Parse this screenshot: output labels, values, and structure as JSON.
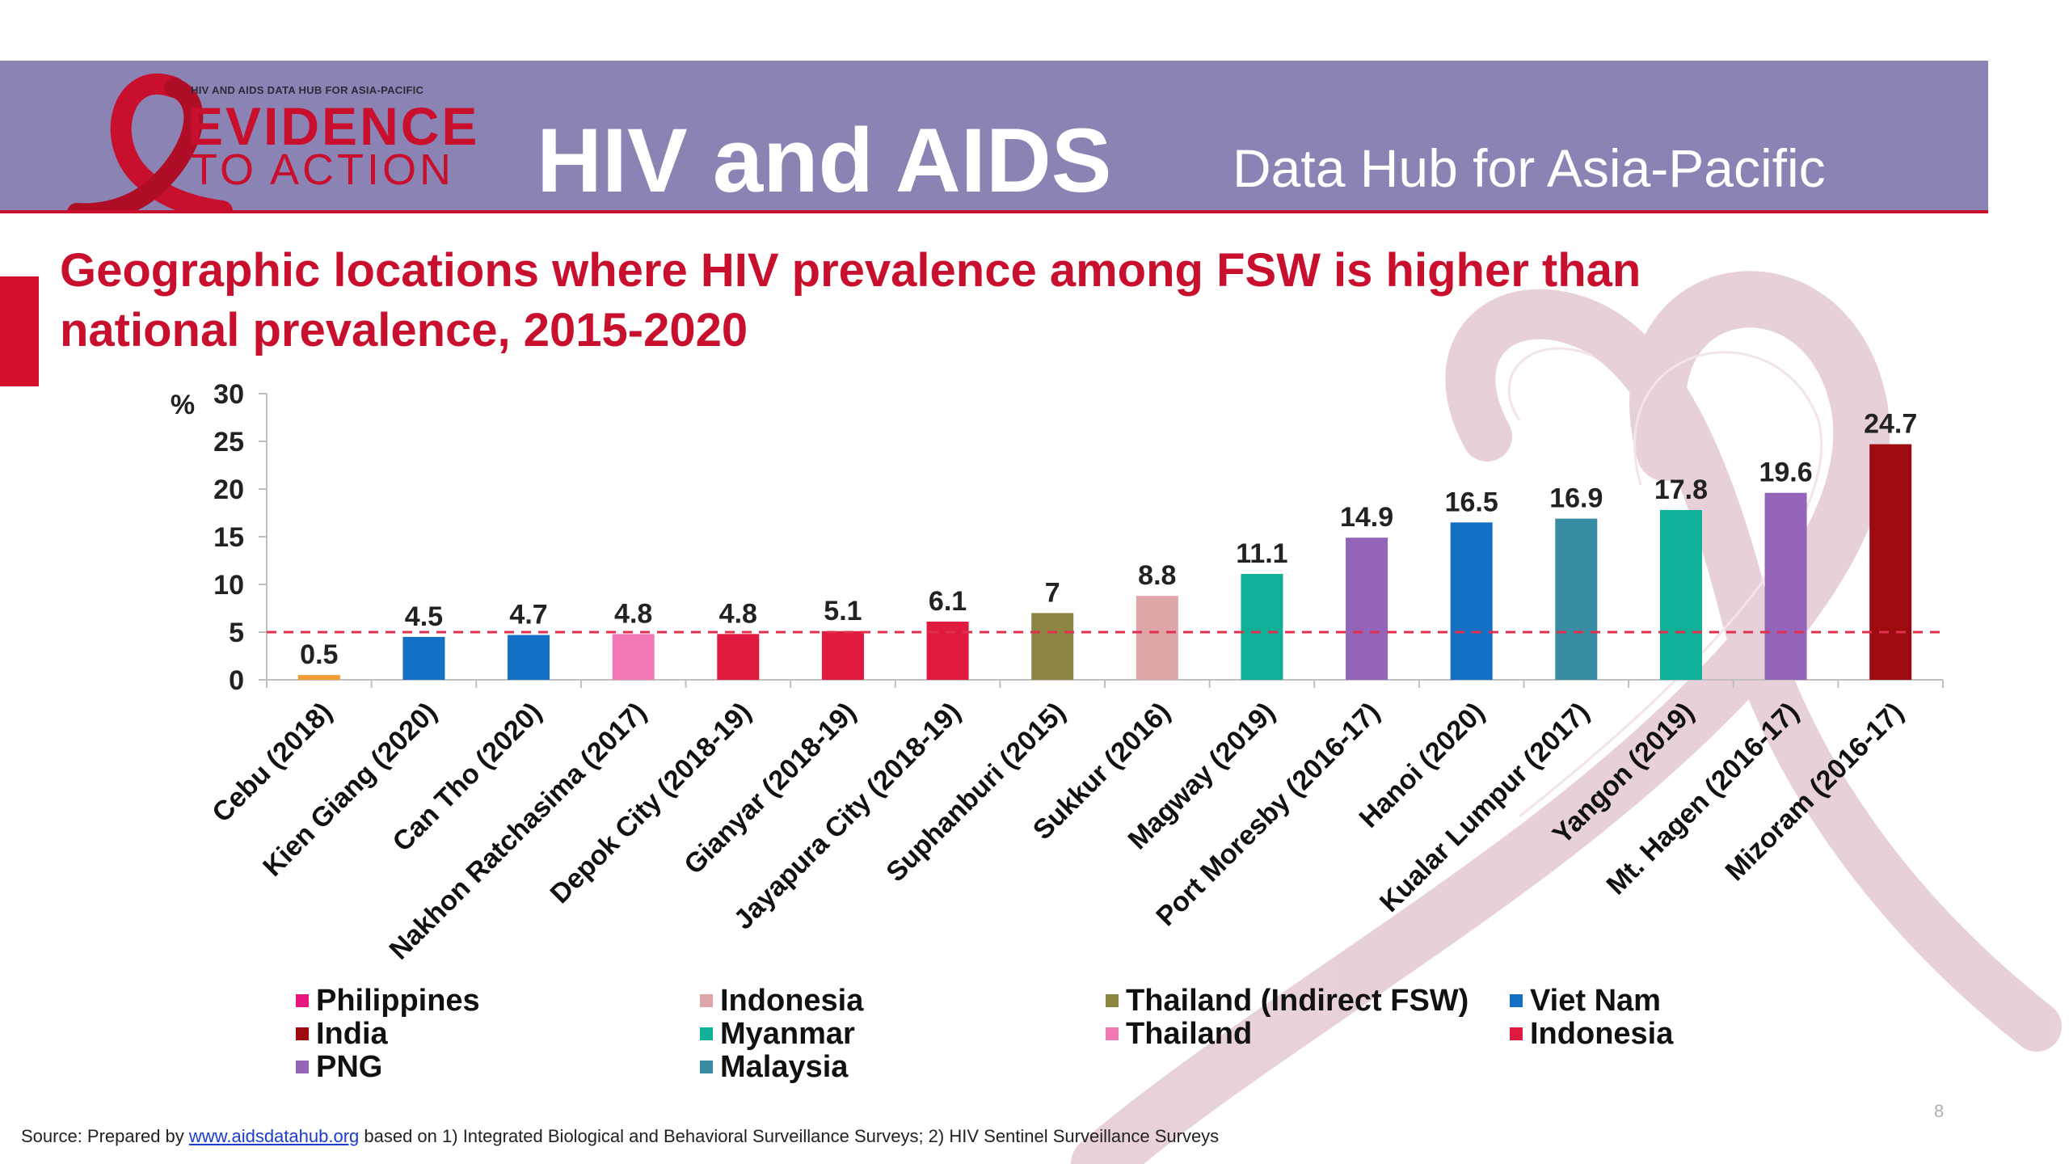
{
  "header": {
    "hub_small": "HIV AND AIDS DATA HUB FOR ASIA-PACIFIC",
    "brand_top": "EVIDENCE",
    "brand_bottom": "TO ACTION",
    "title": "HIV and AIDS",
    "subtitle": "Data Hub for Asia-Pacific",
    "ribbon_color": "#c8102e",
    "banner_color": "#8a83b3"
  },
  "slide_title": "Geographic locations where HIV prevalence among FSW is higher than\nnational prevalence, 2015-2020",
  "chart_data": {
    "type": "bar",
    "title": "Geographic locations where HIV prevalence among FSW is higher than national prevalence, 2015-2020",
    "ylabel": "%",
    "xlabel": "",
    "ylim": [
      0,
      30
    ],
    "yticks": [
      0,
      5,
      10,
      15,
      20,
      25,
      30
    ],
    "reference_line": {
      "value": 5,
      "style": "dashed",
      "color": "#e0304e"
    },
    "grid": false,
    "legend_position": "bottom",
    "categories": [
      "Cebu (2018)",
      "Kien Giang (2020)",
      "Can Tho (2020)",
      "Nakhon Ratchasima (2017)",
      "Depok City (2018-19)",
      "Gianyar (2018-19)",
      "Jayapura City (2018-19)",
      "Suphanburi (2015)",
      "Sukkur (2016)",
      "Magway (2019)",
      "Port Moresby (2016-17)",
      "Hanoi (2020)",
      "Kualar Lumpur (2017)",
      "Yangon (2019)",
      "Mt. Hagen (2016-17)",
      "Mizoram (2016-17)"
    ],
    "values": [
      0.5,
      4.5,
      4.7,
      4.8,
      4.8,
      5.1,
      6.1,
      7,
      8.8,
      11.1,
      14.9,
      16.5,
      16.9,
      17.8,
      19.6,
      24.7
    ],
    "value_labels": [
      "0.5",
      "4.5",
      "4.7",
      "4.8",
      "4.8",
      "5.1",
      "6.1",
      "7",
      "8.8",
      "11.1",
      "14.9",
      "16.5",
      "16.9",
      "17.8",
      "19.6",
      "24.7"
    ],
    "bar_colors": [
      "#f39c33",
      "#1470c4",
      "#1470c4",
      "#f279b6",
      "#e0193f",
      "#e0193f",
      "#e0193f",
      "#8c8543",
      "#dea6a8",
      "#0faf98",
      "#9364b8",
      "#1470c4",
      "#388da3",
      "#0faf98",
      "#9364b8",
      "#9e0b0f"
    ],
    "legend": [
      {
        "label": "Philippines",
        "color": "#e8157e"
      },
      {
        "label": "India",
        "color": "#9e0b0f"
      },
      {
        "label": "PNG",
        "color": "#9364b8"
      },
      {
        "label": "Indonesia",
        "color": "#dea6a8"
      },
      {
        "label": "Myanmar",
        "color": "#0faf98"
      },
      {
        "label": "Malaysia",
        "color": "#388da3"
      },
      {
        "label": "Thailand (Indirect FSW)",
        "color": "#8c8543"
      },
      {
        "label": "Thailand",
        "color": "#f279b6"
      },
      {
        "label": "Viet Nam",
        "color": "#1470c4"
      },
      {
        "label": "Indonesia",
        "color": "#e0193f"
      }
    ]
  },
  "footer": {
    "page_number": "8",
    "source_prefix": "Source: Prepared by ",
    "source_link": "www.aidsdatahub.org",
    "source_suffix": " based on 1) Integrated Biological and Behavioral Surveillance Surveys; 2) HIV Sentinel Surveillance Surveys"
  }
}
